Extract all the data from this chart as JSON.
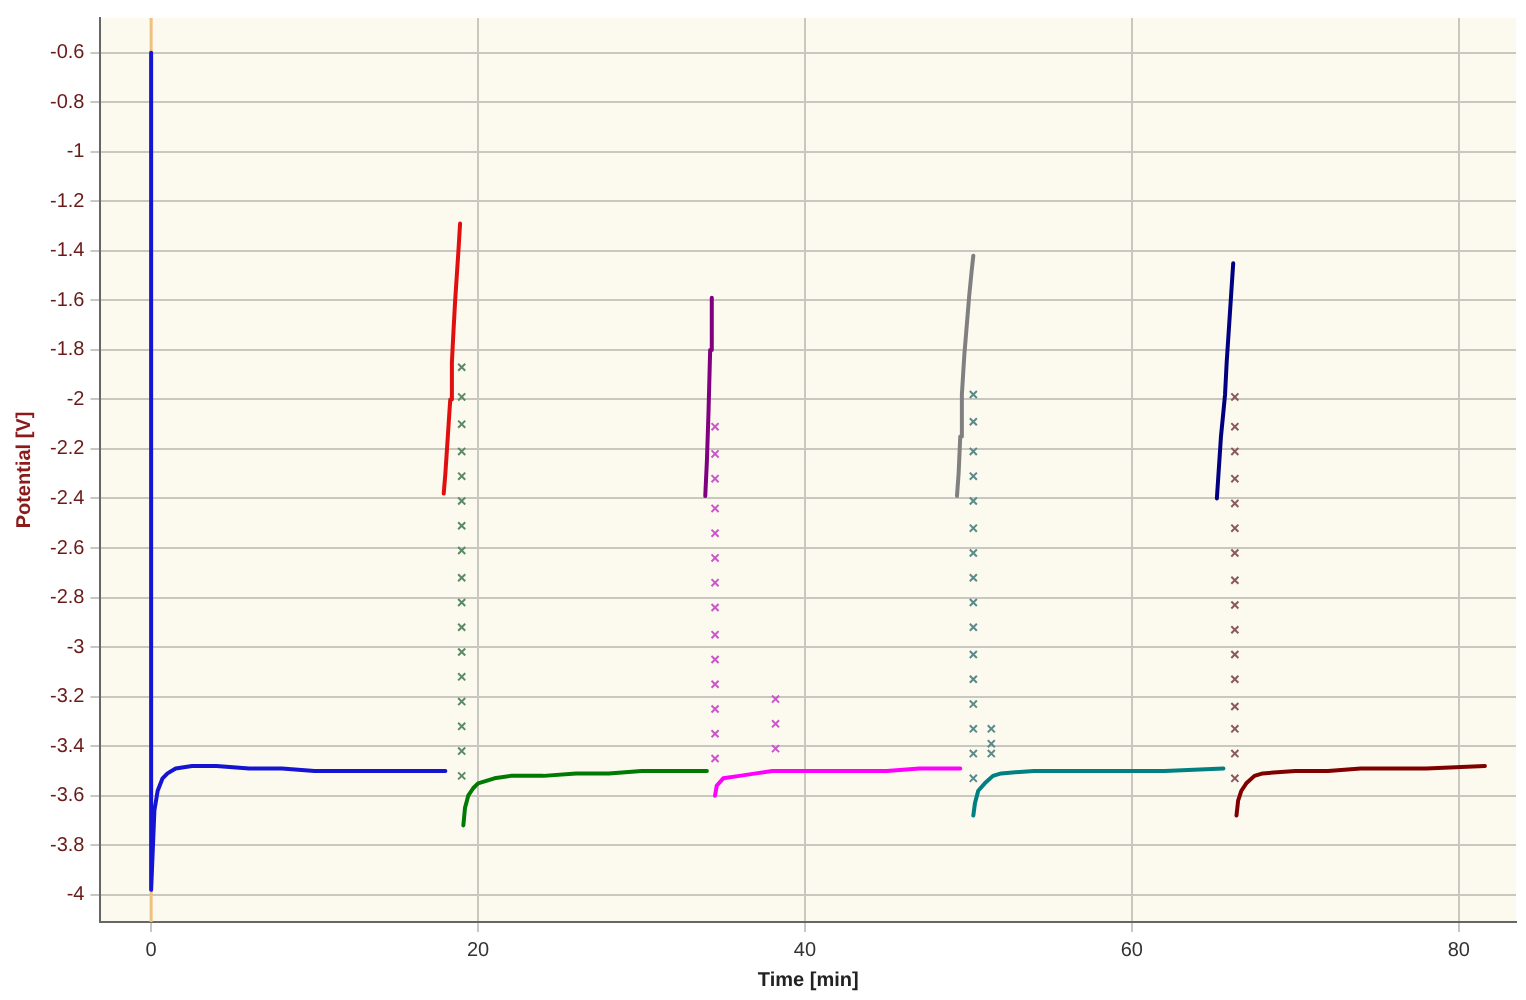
{
  "chart_data": {
    "type": "line",
    "xlabel": "Time [min]",
    "ylabel": "Potential [V]",
    "xlim": [
      -3.1,
      83.5
    ],
    "xticks": [
      0,
      20,
      40,
      60,
      80
    ],
    "ylim": [
      -4.11,
      -0.46
    ],
    "yticks": [
      -0.6,
      -0.8,
      -1,
      -1.2,
      -1.4,
      -1.6,
      -1.8,
      -2,
      -2.2,
      -2.4,
      -2.6,
      -2.8,
      -3,
      -3.2,
      -3.4,
      -3.6,
      -3.8,
      -4
    ],
    "grid": true,
    "legend": false,
    "ref_lines": [
      {
        "axis": "x",
        "value": 0,
        "color": "#f0c080"
      }
    ],
    "series": [
      {
        "type": "line",
        "marker": "none",
        "color": "#1414d2",
        "x": [
          0,
          0,
          0.1,
          0.2,
          0.4,
          0.7,
          1,
          1.5,
          2.5,
          4,
          6,
          8,
          10,
          14,
          18
        ],
        "values": [
          -0.6,
          -3.98,
          -3.82,
          -3.66,
          -3.58,
          -3.53,
          -3.51,
          -3.49,
          -3.48,
          -3.48,
          -3.49,
          -3.49,
          -3.5,
          -3.5,
          -3.5
        ]
      },
      {
        "type": "line",
        "marker": "none",
        "color": "#e01010",
        "x": [
          17.9,
          18.0,
          18.1,
          18.2,
          18.3,
          18.4,
          18.5,
          18.6,
          18.7,
          18.8,
          18.9
        ],
        "values": [
          -2.38,
          -2.3,
          -2.2,
          -2.1,
          -2.0,
          -1.85,
          -1.72,
          -1.6,
          -1.5,
          -1.4,
          -1.29
        ]
      },
      {
        "type": "scatter",
        "marker": "cross",
        "color": "#5a8a66",
        "x": [
          19,
          19,
          19,
          19,
          19,
          19,
          19,
          19,
          19,
          19,
          19,
          19,
          19,
          19,
          19,
          19,
          19
        ],
        "values": [
          -1.87,
          -1.99,
          -2.1,
          -2.21,
          -2.31,
          -2.41,
          -2.51,
          -2.61,
          -2.72,
          -2.82,
          -2.92,
          -3.02,
          -3.12,
          -3.22,
          -3.32,
          -3.42,
          -3.52
        ]
      },
      {
        "type": "line",
        "marker": "none",
        "color": "#007a00",
        "x": [
          19.1,
          19.2,
          19.4,
          19.7,
          20,
          21,
          22,
          24,
          26,
          28,
          30,
          32,
          34
        ],
        "values": [
          -3.72,
          -3.65,
          -3.6,
          -3.57,
          -3.55,
          -3.53,
          -3.52,
          -3.52,
          -3.51,
          -3.51,
          -3.5,
          -3.5,
          -3.5
        ]
      },
      {
        "type": "line",
        "marker": "none",
        "color": "#800080",
        "x": [
          33.9,
          34.0,
          34.1,
          34.2,
          34.3
        ],
        "values": [
          -2.39,
          -2.25,
          -2.05,
          -1.8,
          -1.59
        ]
      },
      {
        "type": "scatter",
        "marker": "cross",
        "color": "#cc55cc",
        "x": [
          34.5,
          34.5,
          34.5,
          34.5,
          34.5,
          34.5,
          34.5,
          34.5,
          34.5,
          34.5,
          34.5,
          34.5,
          34.5,
          34.5,
          38.2,
          38.2,
          38.2
        ],
        "values": [
          -2.11,
          -2.22,
          -2.32,
          -2.44,
          -2.54,
          -2.64,
          -2.74,
          -2.84,
          -2.95,
          -3.05,
          -3.15,
          -3.25,
          -3.35,
          -3.45,
          -3.21,
          -3.31,
          -3.41
        ]
      },
      {
        "type": "line",
        "marker": "none",
        "color": "#ff00ff",
        "x": [
          34.5,
          34.6,
          35,
          36,
          37,
          38,
          40,
          42,
          45,
          47,
          49.5
        ],
        "values": [
          -3.6,
          -3.56,
          -3.53,
          -3.52,
          -3.51,
          -3.5,
          -3.5,
          -3.5,
          -3.5,
          -3.49,
          -3.49
        ]
      },
      {
        "type": "line",
        "marker": "none",
        "color": "#808080",
        "x": [
          49.3,
          49.4,
          49.5,
          49.6,
          49.75,
          49.9,
          50.05,
          50.2,
          50.3
        ],
        "values": [
          -2.39,
          -2.3,
          -2.15,
          -1.98,
          -1.82,
          -1.7,
          -1.58,
          -1.48,
          -1.42
        ]
      },
      {
        "type": "scatter",
        "marker": "cross",
        "color": "#5a8a8a",
        "x": [
          50.3,
          50.3,
          50.3,
          50.3,
          50.3,
          50.3,
          50.3,
          50.3,
          50.3,
          50.3,
          50.3,
          50.3,
          50.3,
          50.3,
          50.3,
          50.3,
          51.4,
          51.4,
          51.4
        ],
        "values": [
          -1.98,
          -2.09,
          -2.21,
          -2.31,
          -2.41,
          -2.52,
          -2.62,
          -2.72,
          -2.82,
          -2.92,
          -3.03,
          -3.13,
          -3.23,
          -3.33,
          -3.43,
          -3.53,
          -3.33,
          -3.39,
          -3.43
        ]
      },
      {
        "type": "line",
        "marker": "none",
        "color": "#008080",
        "x": [
          50.3,
          50.4,
          50.6,
          51,
          51.5,
          52,
          54,
          56,
          58,
          60,
          62,
          65.6
        ],
        "values": [
          -3.68,
          -3.63,
          -3.58,
          -3.55,
          -3.52,
          -3.51,
          -3.5,
          -3.5,
          -3.5,
          -3.5,
          -3.5,
          -3.49
        ]
      },
      {
        "type": "line",
        "marker": "none",
        "color": "#000080",
        "x": [
          65.2,
          65.3,
          65.45,
          65.6,
          65.7,
          65.8,
          65.95,
          66.1,
          66.2
        ],
        "values": [
          -2.4,
          -2.3,
          -2.15,
          -2.05,
          -1.98,
          -1.85,
          -1.7,
          -1.55,
          -1.45
        ]
      },
      {
        "type": "scatter",
        "marker": "cross",
        "color": "#8a5a5a",
        "x": [
          66.3,
          66.3,
          66.3,
          66.3,
          66.3,
          66.3,
          66.3,
          66.3,
          66.3,
          66.3,
          66.3,
          66.3,
          66.3,
          66.3,
          66.3,
          66.3
        ],
        "values": [
          -1.99,
          -2.11,
          -2.21,
          -2.32,
          -2.42,
          -2.52,
          -2.62,
          -2.73,
          -2.83,
          -2.93,
          -3.03,
          -3.13,
          -3.24,
          -3.33,
          -3.43,
          -3.53
        ]
      },
      {
        "type": "line",
        "marker": "none",
        "color": "#800000",
        "x": [
          66.4,
          66.5,
          66.7,
          67,
          67.5,
          68,
          70,
          72,
          74,
          76,
          78,
          81.6
        ],
        "values": [
          -3.68,
          -3.62,
          -3.58,
          -3.55,
          -3.52,
          -3.51,
          -3.5,
          -3.5,
          -3.49,
          -3.49,
          -3.49,
          -3.48
        ]
      }
    ]
  }
}
